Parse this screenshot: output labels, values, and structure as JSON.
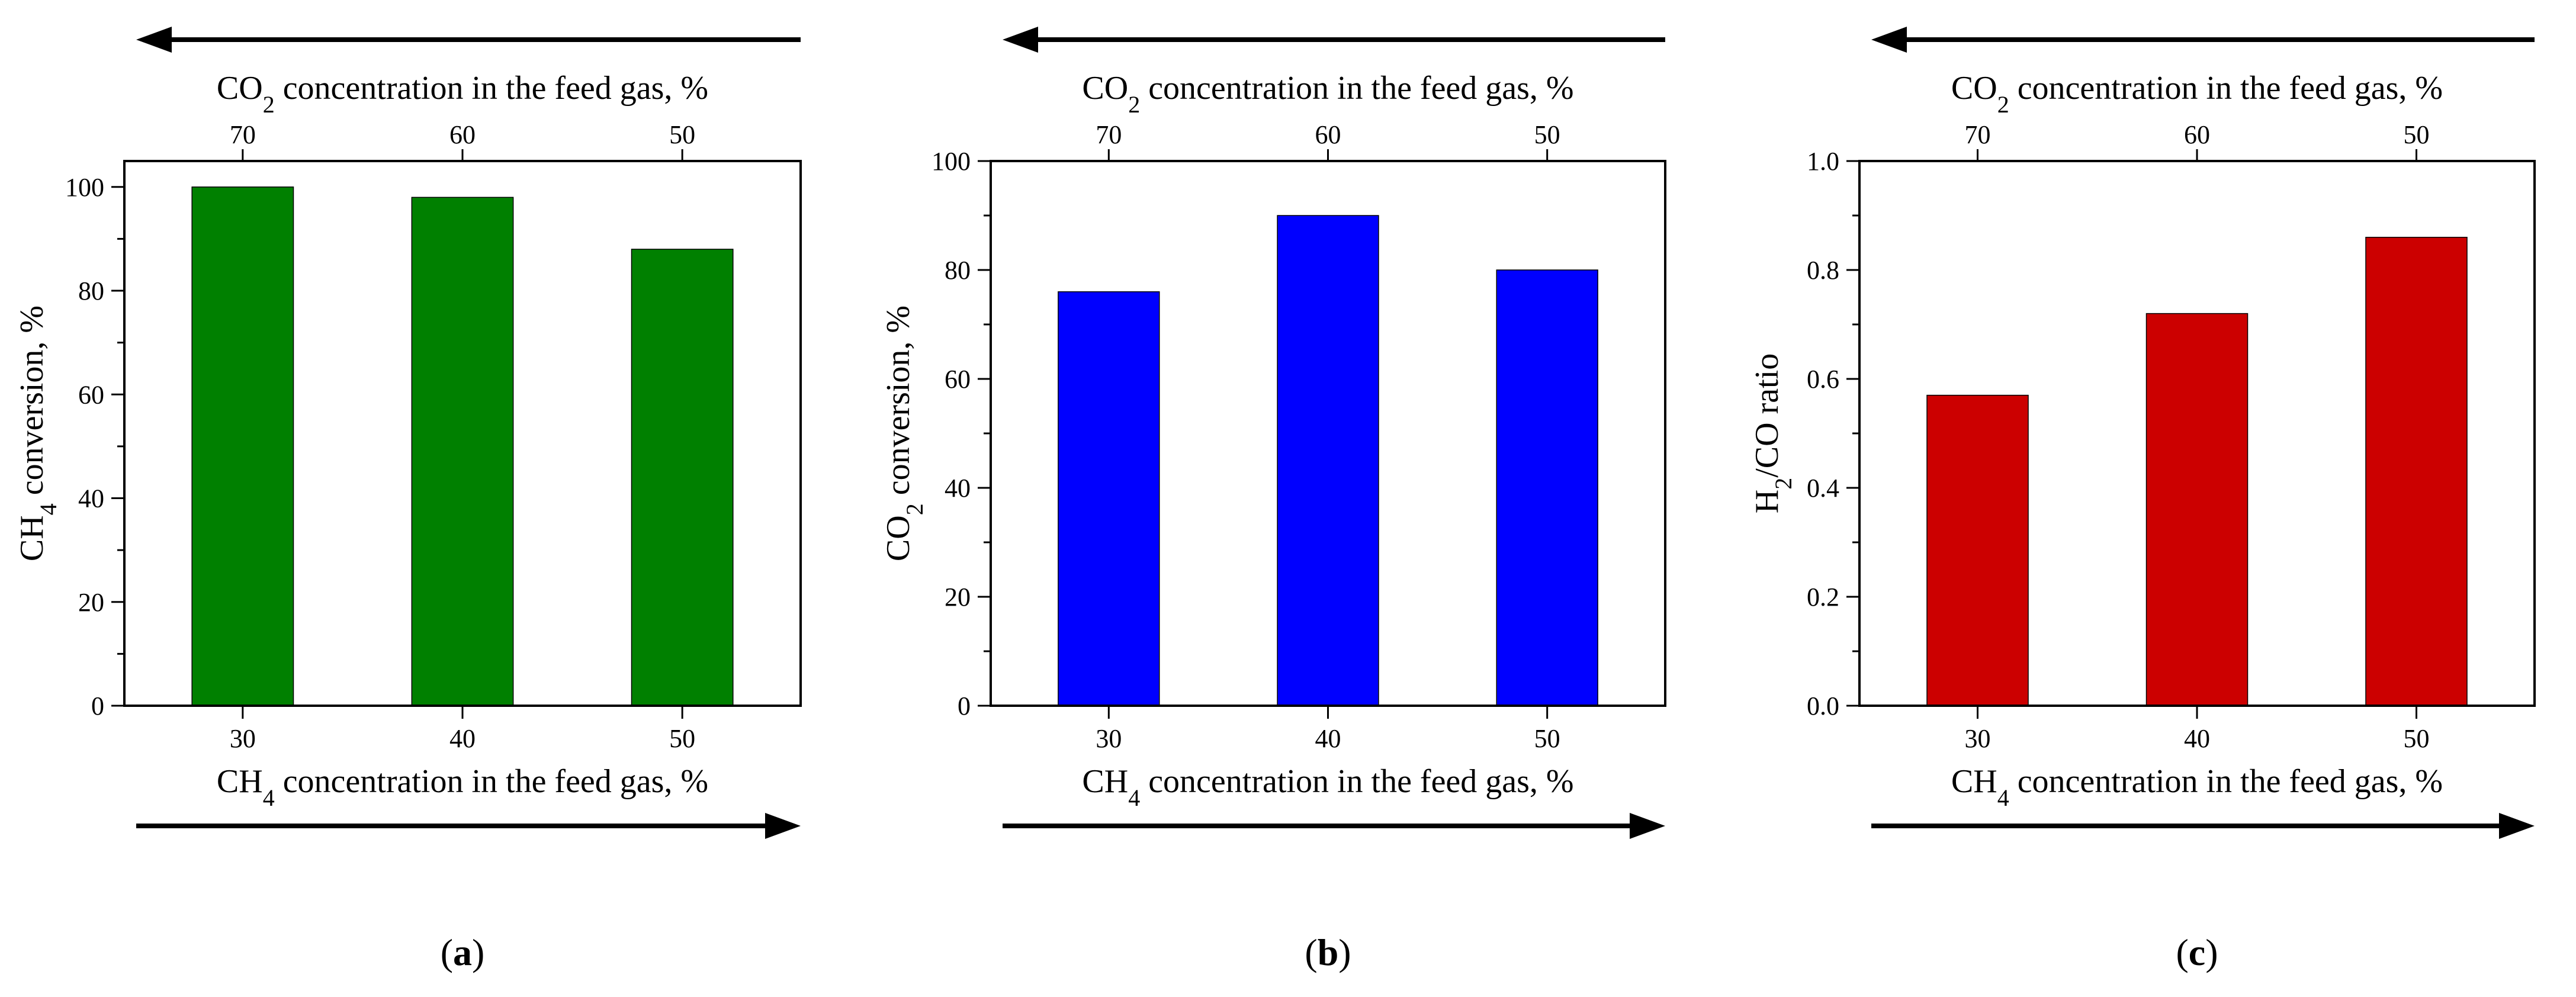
{
  "colors": {
    "panel_a": "#008000",
    "panel_b": "#0000ff",
    "panel_c": "#cc0000",
    "axis": "#000000"
  },
  "top_axis_ticks": [
    "70",
    "60",
    "50"
  ],
  "chart_data": [
    {
      "type": "bar",
      "panel_label": "a",
      "categories": [
        "30",
        "40",
        "50"
      ],
      "values": [
        100,
        98,
        88
      ],
      "ylim": [
        0,
        105
      ],
      "yticks": [
        0,
        20,
        40,
        60,
        80,
        100
      ],
      "ytick_labels": [
        "0",
        "20",
        "40",
        "60",
        "80",
        "100"
      ],
      "ylabel": {
        "main": "CH",
        "sub": "4",
        "rest": " conversion, %"
      },
      "xlabel": {
        "main": "CH",
        "sub": "4",
        "rest": " concentration in the feed gas, %"
      },
      "x2label": {
        "main": "CO",
        "sub": "2",
        "rest": " concentration in the feed gas, %"
      },
      "x2_ticks": [
        "70",
        "60",
        "50"
      ],
      "color": "#008000"
    },
    {
      "type": "bar",
      "panel_label": "b",
      "categories": [
        "30",
        "40",
        "50"
      ],
      "values": [
        76,
        90,
        80
      ],
      "ylim": [
        0,
        100
      ],
      "yticks": [
        0,
        20,
        40,
        60,
        80,
        100
      ],
      "ytick_labels": [
        "0",
        "20",
        "40",
        "60",
        "80",
        "100"
      ],
      "ylabel": {
        "main": "CO",
        "sub": "2",
        "rest": " conversion, %"
      },
      "xlabel": {
        "main": "CH",
        "sub": "4",
        "rest": " concentration in the feed gas, %"
      },
      "x2label": {
        "main": "CO",
        "sub": "2",
        "rest": " concentration in the feed gas, %"
      },
      "x2_ticks": [
        "70",
        "60",
        "50"
      ],
      "color": "#0000ff"
    },
    {
      "type": "bar",
      "panel_label": "c",
      "categories": [
        "30",
        "40",
        "50"
      ],
      "values": [
        0.57,
        0.72,
        0.86
      ],
      "ylim": [
        0,
        1.0
      ],
      "yticks": [
        0,
        0.2,
        0.4,
        0.6,
        0.8,
        1.0
      ],
      "ytick_labels": [
        "0.0",
        "0.2",
        "0.4",
        "0.6",
        "0.8",
        "1.0"
      ],
      "ylabel": {
        "main": "H",
        "sub": "2",
        "rest": "/CO ratio"
      },
      "xlabel": {
        "main": "CH",
        "sub": "4",
        "rest": " concentration in the feed gas, %"
      },
      "x2label": {
        "main": "CO",
        "sub": "2",
        "rest": " concentration in the feed gas, %"
      },
      "x2_ticks": [
        "70",
        "60",
        "50"
      ],
      "color": "#cc0000"
    }
  ]
}
